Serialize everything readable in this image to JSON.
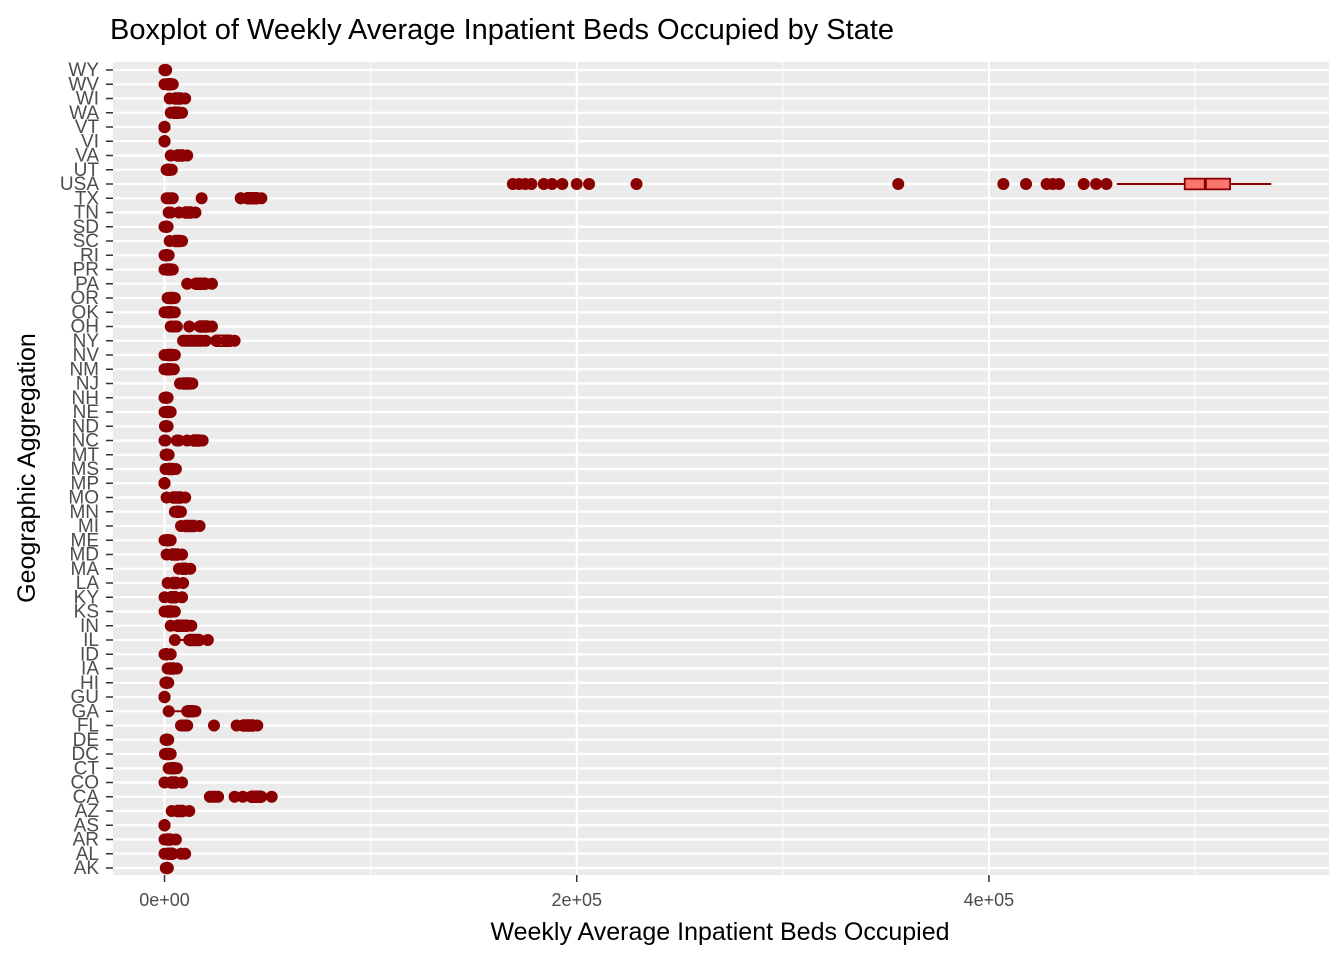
{
  "chart_data": {
    "type": "boxplot",
    "title": "Boxplot of Weekly Average Inpatient Beds Occupied by State",
    "xlabel": "Weekly Average Inpatient Beds Occupied",
    "ylabel": "Geographic Aggregation",
    "xlim": [
      -25000,
      565000
    ],
    "x_ticks": [
      0,
      200000,
      400000
    ],
    "x_tick_labels": [
      "0e+00",
      "2e+05",
      "4e+05"
    ],
    "grid": true,
    "colors": {
      "panel_background": "#ebebeb",
      "grid": "#ffffff",
      "point": "#8b0000",
      "box_fill": "#f8766d",
      "box_line": "#8b0000"
    },
    "categories": [
      "AK",
      "AL",
      "AR",
      "AS",
      "AZ",
      "CA",
      "CO",
      "CT",
      "DC",
      "DE",
      "FL",
      "GA",
      "GU",
      "HI",
      "IA",
      "ID",
      "IL",
      "IN",
      "KS",
      "KY",
      "LA",
      "MA",
      "MD",
      "ME",
      "MI",
      "MN",
      "MO",
      "MP",
      "MS",
      "MT",
      "NC",
      "ND",
      "NE",
      "NH",
      "NJ",
      "NM",
      "NV",
      "NY",
      "OH",
      "OK",
      "OR",
      "PA",
      "PR",
      "RI",
      "SC",
      "SD",
      "TN",
      "TX",
      "USA",
      "UT",
      "VA",
      "VI",
      "VT",
      "WA",
      "WI",
      "WV",
      "WY"
    ],
    "series": [
      {
        "category": "AK",
        "q1": 900,
        "median": 1000,
        "q3": 1200,
        "whisker_low": 600,
        "whisker_high": 1600,
        "outliers": []
      },
      {
        "category": "AL",
        "q1": 1500,
        "median": 2500,
        "q3": 4000,
        "whisker_low": 0,
        "whisker_high": 8000,
        "outliers": [
          10000
        ]
      },
      {
        "category": "AR",
        "q1": 1200,
        "median": 2000,
        "q3": 3000,
        "whisker_low": 0,
        "whisker_high": 5500,
        "outliers": []
      },
      {
        "category": "AS",
        "q1": 0,
        "median": 0,
        "q3": 0,
        "whisker_low": 0,
        "whisker_high": 0,
        "outliers": []
      },
      {
        "category": "AZ",
        "q1": 6000,
        "median": 7500,
        "q3": 9000,
        "whisker_low": 3500,
        "whisker_high": 12000,
        "outliers": []
      },
      {
        "category": "CA",
        "q1": 42000,
        "median": 45000,
        "q3": 47000,
        "whisker_low": 38000,
        "whisker_high": 52000,
        "outliers": [
          22000,
          23000,
          24000,
          25000,
          26000,
          34000
        ]
      },
      {
        "category": "CO",
        "q1": 3000,
        "median": 4000,
        "q3": 5500,
        "whisker_low": 0,
        "whisker_high": 8500,
        "outliers": []
      },
      {
        "category": "CT",
        "q1": 3000,
        "median": 4000,
        "q3": 5000,
        "whisker_low": 2000,
        "whisker_high": 6000,
        "outliers": []
      },
      {
        "category": "DC",
        "q1": 1000,
        "median": 1500,
        "q3": 2000,
        "whisker_low": 200,
        "whisker_high": 3000,
        "outliers": []
      },
      {
        "category": "DE",
        "q1": 800,
        "median": 1000,
        "q3": 1300,
        "whisker_low": 500,
        "whisker_high": 1800,
        "outliers": []
      },
      {
        "category": "FL",
        "q1": 38000,
        "median": 41000,
        "q3": 43000,
        "whisker_low": 35000,
        "whisker_high": 45000,
        "outliers": [
          8000,
          9000,
          10000,
          11000,
          24000
        ]
      },
      {
        "category": "GA",
        "q1": 11000,
        "median": 12500,
        "q3": 14000,
        "whisker_low": 2000,
        "whisker_high": 15000,
        "outliers": []
      },
      {
        "category": "GU",
        "q1": 0,
        "median": 0,
        "q3": 0,
        "whisker_low": 0,
        "whisker_high": 0,
        "outliers": []
      },
      {
        "category": "HI",
        "q1": 800,
        "median": 1000,
        "q3": 1300,
        "whisker_low": 400,
        "whisker_high": 1800,
        "outliers": []
      },
      {
        "category": "IA",
        "q1": 2500,
        "median": 3500,
        "q3": 4500,
        "whisker_low": 1500,
        "whisker_high": 6000,
        "outliers": []
      },
      {
        "category": "ID",
        "q1": 500,
        "median": 800,
        "q3": 1200,
        "whisker_low": 0,
        "whisker_high": 3000,
        "outliers": []
      },
      {
        "category": "IL",
        "q1": 12000,
        "median": 15000,
        "q3": 17000,
        "whisker_low": 5000,
        "whisker_high": 21000,
        "outliers": []
      },
      {
        "category": "IN",
        "q1": 6000,
        "median": 9000,
        "q3": 11000,
        "whisker_low": 3000,
        "whisker_high": 13000,
        "outliers": []
      },
      {
        "category": "KS",
        "q1": 1500,
        "median": 2500,
        "q3": 3500,
        "whisker_low": 0,
        "whisker_high": 5000,
        "outliers": []
      },
      {
        "category": "KY",
        "q1": 3000,
        "median": 4000,
        "q3": 5500,
        "whisker_low": 0,
        "whisker_high": 8500,
        "outliers": []
      },
      {
        "category": "LA",
        "q1": 4000,
        "median": 5000,
        "q3": 6000,
        "whisker_low": 1500,
        "whisker_high": 9000,
        "outliers": []
      },
      {
        "category": "MA",
        "q1": 8500,
        "median": 9500,
        "q3": 10500,
        "whisker_low": 7000,
        "whisker_high": 12500,
        "outliers": []
      },
      {
        "category": "MD",
        "q1": 3500,
        "median": 5000,
        "q3": 6500,
        "whisker_low": 1000,
        "whisker_high": 8500,
        "outliers": []
      },
      {
        "category": "ME",
        "q1": 1000,
        "median": 1500,
        "q3": 2000,
        "whisker_low": 0,
        "whisker_high": 3000,
        "outliers": []
      },
      {
        "category": "MI",
        "q1": 10000,
        "median": 12500,
        "q3": 14500,
        "whisker_low": 8000,
        "whisker_high": 17000,
        "outliers": []
      },
      {
        "category": "MN",
        "q1": 6000,
        "median": 6500,
        "q3": 7000,
        "whisker_low": 5000,
        "whisker_high": 8000,
        "outliers": []
      },
      {
        "category": "MO",
        "q1": 4000,
        "median": 6000,
        "q3": 8000,
        "whisker_low": 1000,
        "whisker_high": 10000,
        "outliers": []
      },
      {
        "category": "MP",
        "q1": 0,
        "median": 0,
        "q3": 0,
        "whisker_low": 0,
        "whisker_high": 0,
        "outliers": []
      },
      {
        "category": "MS",
        "q1": 2000,
        "median": 3000,
        "q3": 4000,
        "whisker_low": 500,
        "whisker_high": 5500,
        "outliers": []
      },
      {
        "category": "MT",
        "q1": 800,
        "median": 1000,
        "q3": 1300,
        "whisker_low": 500,
        "whisker_high": 2000,
        "outliers": []
      },
      {
        "category": "NC",
        "q1": 14000,
        "median": 15500,
        "q3": 17000,
        "whisker_low": 11000,
        "whisker_high": 18500,
        "outliers": [
          0,
          500,
          6000,
          7000
        ]
      },
      {
        "category": "ND",
        "q1": 500,
        "median": 700,
        "q3": 1000,
        "whisker_low": 200,
        "whisker_high": 1500,
        "outliers": []
      },
      {
        "category": "NE",
        "q1": 1000,
        "median": 1500,
        "q3": 2000,
        "whisker_low": 0,
        "whisker_high": 3000,
        "outliers": []
      },
      {
        "category": "NH",
        "q1": 500,
        "median": 800,
        "q3": 1000,
        "whisker_low": 0,
        "whisker_high": 1500,
        "outliers": []
      },
      {
        "category": "NJ",
        "q1": 9000,
        "median": 11000,
        "q3": 12500,
        "whisker_low": 7500,
        "whisker_high": 13500,
        "outliers": []
      },
      {
        "category": "NM",
        "q1": 1000,
        "median": 2000,
        "q3": 3000,
        "whisker_low": 0,
        "whisker_high": 4500,
        "outliers": []
      },
      {
        "category": "NV",
        "q1": 1500,
        "median": 2500,
        "q3": 4000,
        "whisker_low": 0,
        "whisker_high": 5000,
        "outliers": []
      },
      {
        "category": "NY",
        "q1": 25000,
        "median": 30000,
        "q3": 32000,
        "whisker_low": 20000,
        "whisker_high": 34000,
        "outliers": [
          9000,
          10000,
          11000,
          12000,
          13000,
          14000,
          15000,
          16000,
          17000,
          18000
        ]
      },
      {
        "category": "OH",
        "q1": 17000,
        "median": 19000,
        "q3": 21000,
        "whisker_low": 12000,
        "whisker_high": 23000,
        "outliers": [
          3000,
          4000,
          5000,
          6000
        ]
      },
      {
        "category": "OK",
        "q1": 1500,
        "median": 2500,
        "q3": 3500,
        "whisker_low": 0,
        "whisker_high": 5000,
        "outliers": []
      },
      {
        "category": "OR",
        "q1": 2500,
        "median": 3000,
        "q3": 4000,
        "whisker_low": 1500,
        "whisker_high": 5000,
        "outliers": []
      },
      {
        "category": "PA",
        "q1": 15000,
        "median": 18000,
        "q3": 20000,
        "whisker_low": 11000,
        "whisker_high": 23000,
        "outliers": []
      },
      {
        "category": "PR",
        "q1": 1000,
        "median": 2000,
        "q3": 3000,
        "whisker_low": 0,
        "whisker_high": 4000,
        "outliers": []
      },
      {
        "category": "RI",
        "q1": 500,
        "median": 1000,
        "q3": 1300,
        "whisker_low": 0,
        "whisker_high": 2000,
        "outliers": []
      },
      {
        "category": "SC",
        "q1": 5000,
        "median": 6500,
        "q3": 7500,
        "whisker_low": 2500,
        "whisker_high": 8500,
        "outliers": []
      },
      {
        "category": "SD",
        "q1": 500,
        "median": 800,
        "q3": 1000,
        "whisker_low": 0,
        "whisker_high": 1500,
        "outliers": []
      },
      {
        "category": "TN",
        "q1": 10000,
        "median": 11500,
        "q3": 13000,
        "whisker_low": 7000,
        "whisker_high": 15000,
        "outliers": [
          2000,
          3000
        ]
      },
      {
        "category": "TX",
        "q1": 40000,
        "median": 43000,
        "q3": 45000,
        "whisker_low": 37000,
        "whisker_high": 47000,
        "outliers": [
          1000,
          2000,
          3000,
          4000,
          18000,
          37000
        ]
      },
      {
        "category": "USA",
        "q1": 495000,
        "median": 505000,
        "q3": 517000,
        "whisker_low": 462000,
        "whisker_high": 537000,
        "outliers": [
          169000,
          172000,
          175000,
          178000,
          184000,
          188000,
          193000,
          200000,
          206000,
          229000,
          356000,
          407000,
          418000,
          428000,
          431000,
          434000,
          446000,
          452000,
          457000
        ]
      },
      {
        "category": "UT",
        "q1": 1500,
        "median": 2000,
        "q3": 2500,
        "whisker_low": 1000,
        "whisker_high": 3500,
        "outliers": []
      },
      {
        "category": "VA",
        "q1": 6000,
        "median": 7500,
        "q3": 9000,
        "whisker_low": 3000,
        "whisker_high": 11000,
        "outliers": []
      },
      {
        "category": "VI",
        "q1": 0,
        "median": 0,
        "q3": 0,
        "whisker_low": 0,
        "whisker_high": 0,
        "outliers": []
      },
      {
        "category": "VT",
        "q1": 0,
        "median": 0,
        "q3": 0,
        "whisker_low": 0,
        "whisker_high": 0,
        "outliers": []
      },
      {
        "category": "WA",
        "q1": 4500,
        "median": 5500,
        "q3": 7000,
        "whisker_low": 3000,
        "whisker_high": 8500,
        "outliers": []
      },
      {
        "category": "WI",
        "q1": 5000,
        "median": 6500,
        "q3": 8000,
        "whisker_low": 2500,
        "whisker_high": 10000,
        "outliers": []
      },
      {
        "category": "WV",
        "q1": 1500,
        "median": 2000,
        "q3": 3000,
        "whisker_low": 0,
        "whisker_high": 4000,
        "outliers": []
      },
      {
        "category": "WY",
        "q1": 0,
        "median": 200,
        "q3": 400,
        "whisker_low": 0,
        "whisker_high": 800,
        "outliers": []
      }
    ]
  }
}
